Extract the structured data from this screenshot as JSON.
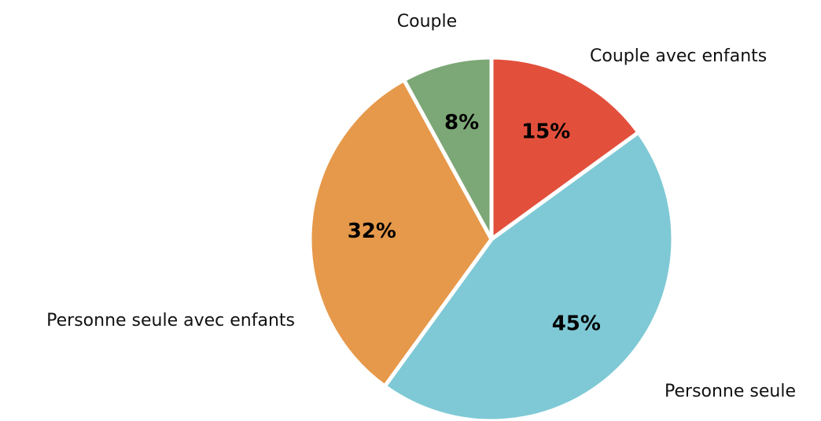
{
  "chart_data": {
    "type": "pie",
    "categories": [
      "Couple avec enfants",
      "Personne seule",
      "Personne seule avec enfants",
      "Couple"
    ],
    "values": [
      15,
      45,
      32,
      8
    ],
    "value_labels": [
      "15%",
      "45%",
      "32%",
      "8%"
    ],
    "colors": [
      "#e2503c",
      "#7fc9d6",
      "#e6994a",
      "#7ca776"
    ]
  }
}
